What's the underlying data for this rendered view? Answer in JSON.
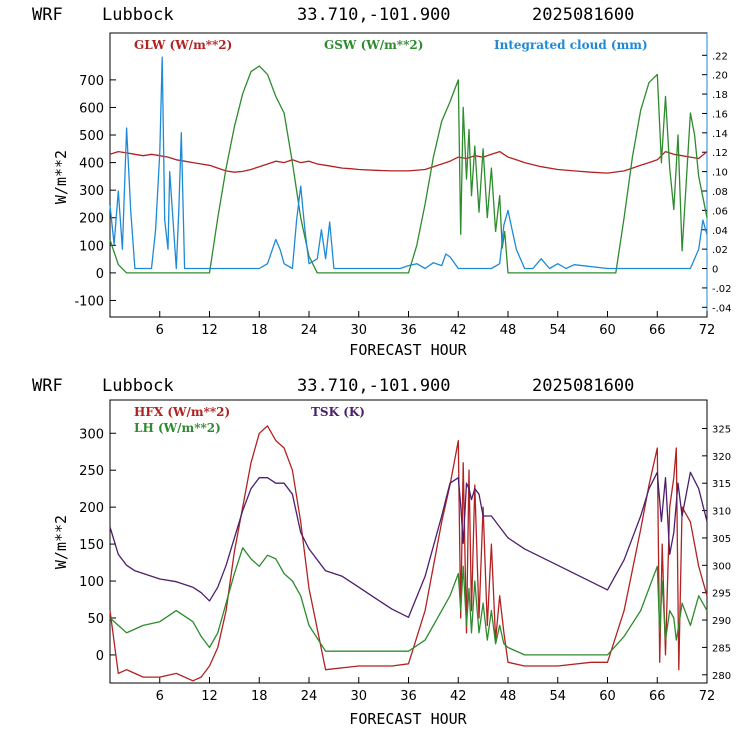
{
  "panels": [
    {
      "header": {
        "model": "WRF",
        "site": "Lubbock",
        "coords": "33.710,-101.900",
        "init": "2025081600"
      },
      "legend": [
        {
          "label": "GLW (W/m**2)",
          "color": "#b22222"
        },
        {
          "label": "GSW (W/m**2)",
          "color": "#2e8b2e"
        },
        {
          "label": "Integrated cloud (mm)",
          "color": "#1e8ad6"
        }
      ],
      "ylabel": "W/m**2",
      "xlabel": "FORECAST HOUR"
    },
    {
      "header": {
        "model": "WRF",
        "site": "Lubbock",
        "coords": "33.710,-101.900",
        "init": "2025081600"
      },
      "legend": [
        {
          "label": "HFX (W/m**2)",
          "color": "#b22222"
        },
        {
          "label": "LH  (W/m**2)",
          "color": "#2e8b2e"
        },
        {
          "label": "TSK (K)",
          "color": "#4b1f6e"
        }
      ],
      "ylabel": "W/m**2",
      "xlabel": "FORECAST HOUR"
    }
  ],
  "chart_data": [
    {
      "type": "line",
      "x_ticks": [
        6,
        12,
        18,
        24,
        30,
        36,
        42,
        48,
        54,
        60,
        66,
        72
      ],
      "xlim": [
        0,
        72
      ],
      "y_ticks": [
        -100,
        0,
        100,
        200,
        300,
        400,
        500,
        600,
        700
      ],
      "ylim": [
        -160,
        870
      ],
      "y2_ticks": [
        ".22",
        ".20",
        ".18",
        ".16",
        ".14",
        ".12",
        ".10",
        ".08",
        ".06",
        ".04",
        ".02",
        "0",
        "-.02",
        "-.04"
      ],
      "y2_values": [
        0.22,
        0.2,
        0.18,
        0.16,
        0.14,
        0.12,
        0.1,
        0.08,
        0.06,
        0.04,
        0.02,
        0,
        -0.02,
        -0.04
      ],
      "y2lim": [
        -0.05,
        0.243
      ],
      "series": [
        {
          "name": "GLW (W/m**2)",
          "axis": "left",
          "color": "#b22222",
          "x": [
            0,
            1,
            2,
            3,
            4,
            5,
            6,
            7,
            8,
            9,
            10,
            11,
            12,
            13,
            14,
            15,
            16,
            17,
            18,
            19,
            20,
            21,
            22,
            23,
            24,
            25,
            26,
            27,
            28,
            29,
            30,
            32,
            34,
            36,
            38,
            40,
            41,
            42,
            43,
            44,
            45,
            46,
            47,
            48,
            49,
            50,
            52,
            54,
            56,
            58,
            60,
            62,
            64,
            65,
            66,
            67,
            68,
            69,
            70,
            71,
            72
          ],
          "y": [
            430,
            440,
            435,
            430,
            425,
            430,
            425,
            420,
            410,
            405,
            400,
            395,
            390,
            380,
            370,
            365,
            368,
            375,
            385,
            395,
            405,
            400,
            410,
            400,
            405,
            395,
            390,
            385,
            380,
            378,
            375,
            372,
            370,
            370,
            375,
            395,
            405,
            420,
            415,
            425,
            420,
            430,
            440,
            420,
            410,
            400,
            385,
            375,
            370,
            365,
            362,
            370,
            390,
            400,
            410,
            440,
            430,
            425,
            420,
            415,
            440
          ]
        },
        {
          "name": "GSW (W/m**2)",
          "axis": "left",
          "color": "#2e8b2e",
          "x": [
            0,
            1,
            2,
            6,
            11,
            12,
            13,
            14,
            15,
            16,
            17,
            18,
            19,
            20,
            21,
            22,
            23,
            24,
            25,
            26,
            27,
            35,
            36,
            37,
            38,
            39,
            40,
            41,
            41.5,
            42,
            42.3,
            42.6,
            43,
            43.3,
            43.6,
            44,
            44.5,
            45,
            45.5,
            46,
            46.5,
            47,
            47.3,
            47.6,
            48,
            48.3,
            48.6,
            49,
            60,
            61,
            62,
            63,
            64,
            65,
            66,
            66.5,
            67,
            67.5,
            68,
            68.5,
            69,
            70,
            70.5,
            71,
            72
          ],
          "y": [
            120,
            30,
            0,
            0,
            0,
            0,
            200,
            380,
            530,
            650,
            730,
            750,
            720,
            640,
            580,
            400,
            200,
            60,
            0,
            0,
            0,
            0,
            0,
            100,
            250,
            420,
            550,
            620,
            660,
            700,
            140,
            600,
            340,
            520,
            280,
            460,
            220,
            450,
            200,
            380,
            150,
            280,
            90,
            150,
            0,
            0,
            0,
            0,
            0,
            0,
            200,
            420,
            590,
            690,
            720,
            400,
            640,
            380,
            230,
            500,
            80,
            580,
            500,
            350,
            200
          ]
        },
        {
          "name": "Integrated cloud (mm)",
          "axis": "right",
          "color": "#1e8ad6",
          "x": [
            0,
            0.5,
            1,
            1.5,
            2,
            2.5,
            3,
            4,
            5,
            5.5,
            6,
            6.3,
            6.6,
            7,
            7.2,
            8,
            8.3,
            8.6,
            9,
            10,
            14,
            16,
            18,
            19,
            20,
            20.5,
            21,
            22,
            22.5,
            23,
            23.5,
            24,
            25,
            25.5,
            26,
            26.5,
            27,
            30,
            35,
            36,
            37,
            38,
            39,
            40,
            40.5,
            41,
            42,
            44,
            46,
            47,
            47.5,
            48,
            48.5,
            49,
            50,
            51,
            52,
            53,
            54,
            55,
            56,
            60,
            62,
            66,
            68,
            69,
            70,
            71,
            71.5,
            72
          ],
          "y": [
            0.065,
            0.025,
            0.08,
            0.02,
            0.145,
            0.06,
            0,
            0,
            0,
            0.04,
            0.12,
            0.218,
            0.05,
            0.02,
            0.1,
            0,
            0.06,
            0.14,
            0,
            0,
            0,
            0,
            0,
            0.005,
            0.03,
            0.02,
            0.005,
            0,
            0.05,
            0.085,
            0.04,
            0.005,
            0.01,
            0.04,
            0.01,
            0.048,
            0,
            0,
            0,
            0.003,
            0.005,
            0,
            0.006,
            0.003,
            0.015,
            0.012,
            0,
            0,
            0,
            0.005,
            0.045,
            0.06,
            0.04,
            0.02,
            0,
            0,
            0.01,
            0,
            0.005,
            0,
            0.004,
            0,
            0,
            0,
            0,
            0,
            0,
            0.02,
            0.05,
            0.035
          ]
        }
      ]
    },
    {
      "type": "line",
      "x_ticks": [
        6,
        12,
        18,
        24,
        30,
        36,
        42,
        48,
        54,
        60,
        66,
        72
      ],
      "xlim": [
        0,
        72
      ],
      "y_ticks": [
        0,
        50,
        100,
        150,
        200,
        250,
        300
      ],
      "ylim": [
        -38,
        345
      ],
      "y2_ticks": [
        "325",
        "320",
        "315",
        "310",
        "305",
        "300",
        "295",
        "290",
        "285",
        "280"
      ],
      "y2_values": [
        325,
        320,
        315,
        310,
        305,
        300,
        295,
        290,
        285,
        280
      ],
      "y2lim": [
        278.5,
        330.2
      ],
      "series": [
        {
          "name": "HFX (W/m**2)",
          "axis": "left",
          "color": "#b22222",
          "x": [
            0,
            1,
            2,
            4,
            6,
            8,
            10,
            11,
            12,
            13,
            14,
            15,
            16,
            17,
            18,
            19,
            20,
            21,
            22,
            23,
            24,
            26,
            30,
            34,
            36,
            38,
            40,
            41,
            42,
            42.3,
            42.6,
            43,
            43.3,
            43.6,
            44,
            44.5,
            45,
            45.5,
            46,
            46.5,
            47,
            47.5,
            48,
            50,
            54,
            58,
            60,
            62,
            64,
            65,
            66,
            66.3,
            66.6,
            67,
            67.5,
            68,
            68.3,
            68.6,
            69,
            70,
            71,
            72
          ],
          "y": [
            60,
            -25,
            -20,
            -30,
            -30,
            -25,
            -35,
            -30,
            -15,
            10,
            60,
            140,
            200,
            260,
            300,
            310,
            290,
            280,
            250,
            180,
            90,
            -20,
            -15,
            -15,
            -12,
            60,
            180,
            230,
            290,
            50,
            260,
            30,
            250,
            60,
            230,
            50,
            200,
            40,
            150,
            20,
            80,
            30,
            -10,
            -15,
            -15,
            -10,
            -10,
            60,
            170,
            230,
            280,
            -10,
            150,
            0,
            200,
            240,
            280,
            -20,
            200,
            180,
            120,
            80
          ]
        },
        {
          "name": "LH  (W/m**2)",
          "axis": "left",
          "color": "#2e8b2e",
          "x": [
            0,
            1,
            2,
            4,
            6,
            8,
            10,
            11,
            12,
            13,
            14,
            15,
            16,
            17,
            18,
            19,
            20,
            21,
            22,
            23,
            24,
            26,
            30,
            34,
            36,
            38,
            40,
            41,
            42,
            42.3,
            42.6,
            43,
            43.3,
            43.6,
            44,
            44.5,
            45,
            45.5,
            46,
            46.5,
            47,
            47.5,
            48,
            50,
            54,
            58,
            60,
            62,
            64,
            65,
            66,
            66.3,
            66.6,
            67,
            67.5,
            68,
            68.3,
            68.6,
            69,
            70,
            71,
            72
          ],
          "y": [
            50,
            40,
            30,
            40,
            45,
            60,
            45,
            25,
            10,
            30,
            70,
            110,
            145,
            130,
            120,
            135,
            130,
            110,
            100,
            80,
            40,
            5,
            5,
            5,
            5,
            20,
            60,
            80,
            110,
            60,
            120,
            40,
            90,
            30,
            100,
            30,
            70,
            20,
            60,
            15,
            40,
            15,
            10,
            0,
            0,
            0,
            0,
            25,
            60,
            90,
            120,
            30,
            100,
            20,
            60,
            50,
            20,
            40,
            70,
            40,
            80,
            60
          ]
        },
        {
          "name": "TSK (K)",
          "axis": "right",
          "color": "#4b1f6e",
          "x": [
            0,
            1,
            2,
            3,
            4,
            6,
            8,
            10,
            11,
            12,
            13,
            14,
            15,
            16,
            17,
            18,
            19,
            20,
            21,
            22,
            23,
            24,
            26,
            28,
            30,
            32,
            34,
            36,
            38,
            40,
            41,
            42,
            42.3,
            42.6,
            43,
            43.3,
            43.6,
            44,
            44.5,
            45,
            46,
            47,
            48,
            50,
            54,
            58,
            60,
            62,
            64,
            65,
            66,
            66.5,
            67,
            67.5,
            68,
            68.5,
            69,
            70,
            71,
            72
          ],
          "y": [
            307,
            302,
            300,
            299,
            298.5,
            297.5,
            297,
            296,
            295,
            293.5,
            296,
            300,
            305,
            310,
            314,
            316,
            316,
            315,
            315,
            313,
            306,
            303,
            299,
            298,
            296,
            294,
            292,
            290.5,
            298,
            309,
            315,
            316,
            311,
            304,
            315,
            314,
            312,
            314,
            313,
            309,
            309,
            307,
            305,
            303,
            300,
            297,
            295.5,
            301,
            309,
            314,
            317,
            308,
            316,
            302,
            306,
            315,
            309,
            317,
            314,
            308
          ]
        }
      ]
    }
  ]
}
